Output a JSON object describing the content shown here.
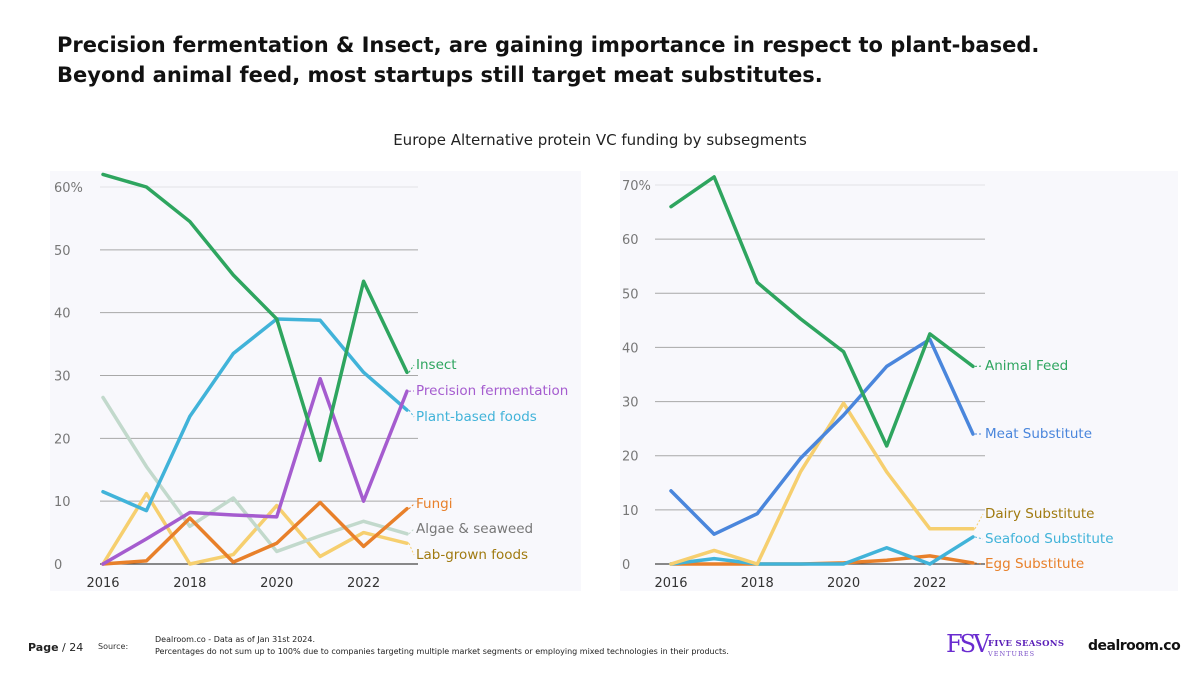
{
  "headline": {
    "line1": "Precision fermentation & Insect, are gaining importance in respect to plant-based.",
    "line2": "Beyond animal feed, most startups still target meat substitutes."
  },
  "chart_title": "Europe Alternative protein VC funding by subsegments",
  "footer": {
    "page_word": "Page",
    "page_number": "/ 24",
    "source_label": "Source:",
    "source_line1": "Dealroom.co  - Data as of Jan 31st 2024.",
    "source_line2": "Percentages do not sum up to 100% due to companies targeting multiple market segments or employing mixed technologies in their products.",
    "logo_fsv_mark": "FSV",
    "logo_fsv_name": "FIVE SEASONS",
    "logo_fsv_sub": "VENTURES",
    "logo_dealroom": "dealroom.co"
  },
  "chart_data": [
    {
      "type": "line",
      "x": [
        2016,
        2017,
        2018,
        2019,
        2020,
        2021,
        2022,
        2023
      ],
      "xticks": [
        2016,
        2018,
        2020,
        2022
      ],
      "xtick_labels": [
        "2016",
        "2018",
        "2020",
        "2022"
      ],
      "ylim": [
        0,
        60
      ],
      "yticks": [
        0,
        10,
        20,
        30,
        40,
        50,
        60
      ],
      "ytick_labels": [
        "0",
        "10",
        "20",
        "30",
        "40",
        "50",
        "60%"
      ],
      "legend": "right, end of lines",
      "series": [
        {
          "name": "Insect",
          "color": "#2ea55f",
          "values": [
            62,
            60,
            54.5,
            46,
            39,
            16.5,
            45,
            30.5
          ]
        },
        {
          "name": "Precision fermentation",
          "color": "#a55ccf",
          "values": [
            0,
            4,
            8.2,
            7.8,
            7.5,
            29.5,
            10,
            27.5
          ]
        },
        {
          "name": "Plant-based foods",
          "color": "#41b3d9",
          "values": [
            11.5,
            8.5,
            23.5,
            33.5,
            39,
            38.8,
            30.5,
            24.5
          ]
        },
        {
          "name": "Fungi",
          "color": "#e8802a",
          "values": [
            0,
            0.5,
            7.3,
            0.3,
            3.3,
            9.8,
            2.8,
            8.8
          ]
        },
        {
          "name": "Algae & seaweed",
          "color": "#c2d9cc",
          "values": [
            26.5,
            15.5,
            6,
            10.5,
            2,
            4.5,
            6.8,
            4.8
          ]
        },
        {
          "name": "Lab-grown foods",
          "color": "#f6cf6f",
          "values": [
            0,
            11.2,
            0,
            1.5,
            9.3,
            1.2,
            5,
            3.3
          ]
        }
      ]
    },
    {
      "type": "line",
      "x": [
        2016,
        2017,
        2018,
        2019,
        2020,
        2021,
        2022,
        2023
      ],
      "xticks": [
        2016,
        2018,
        2020,
        2022
      ],
      "xtick_labels": [
        "2016",
        "2018",
        "2020",
        "2022"
      ],
      "ylim": [
        0,
        70
      ],
      "yticks": [
        0,
        10,
        20,
        30,
        40,
        50,
        60,
        70
      ],
      "ytick_labels": [
        "0",
        "10",
        "20",
        "30",
        "40",
        "50",
        "60",
        "70%"
      ],
      "legend": "right, end of lines",
      "series": [
        {
          "name": "Animal Feed",
          "color": "#2ea55f",
          "values": [
            66,
            71.5,
            52,
            45.3,
            39.2,
            21.8,
            42.5,
            36.5
          ]
        },
        {
          "name": "Meat Substitute",
          "color": "#4a86dc",
          "values": [
            13.5,
            5.5,
            9.3,
            19.5,
            27.5,
            36.5,
            41.5,
            24
          ]
        },
        {
          "name": "Dairy Substitute",
          "color": "#f6cf6f",
          "values": [
            0,
            2.5,
            0,
            17,
            29.7,
            17,
            6.5,
            6.5
          ]
        },
        {
          "name": "Seafood Substitute",
          "color": "#41b3d9",
          "values": [
            0,
            1,
            0,
            0,
            0,
            3,
            0,
            5
          ]
        },
        {
          "name": "Egg Substitute",
          "color": "#e8802a",
          "values": [
            0,
            0,
            0,
            0,
            0.2,
            0.7,
            1.5,
            0.2
          ]
        }
      ]
    }
  ]
}
